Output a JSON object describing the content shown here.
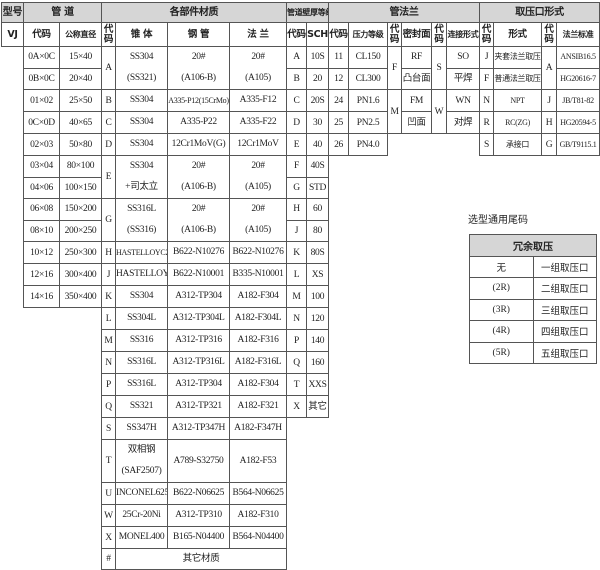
{
  "headers": {
    "model": "型号",
    "pipe": "管 道",
    "materials": "各部件材质",
    "wall": "管道壁厚等级",
    "flange": "管法兰",
    "tap": "取压口形式"
  },
  "subheaders": [
    "VJ",
    "代码",
    "公称直径",
    "代码",
    "锥 体",
    "钢 管",
    "法 兰",
    "代码",
    "SCH",
    "代码",
    "压力等级",
    "代码",
    "密封面",
    "代码",
    "连接形式",
    "代码",
    "形式",
    "代码",
    "法兰标准"
  ],
  "pipe_rows": [
    {
      "code": "0A×0C",
      "size": "15×40"
    },
    {
      "code": "0B×0C",
      "size": "20×40"
    },
    {
      "code": "01×02",
      "size": "25×50"
    },
    {
      "code": "0C×0D",
      "size": "40×65"
    },
    {
      "code": "02×03",
      "size": "50×80"
    },
    {
      "code": "03×04",
      "size": "80×100"
    },
    {
      "code": "04×06",
      "size": "100×150"
    },
    {
      "code": "06×08",
      "size": "150×200"
    },
    {
      "code": "08×10",
      "size": "200×250"
    },
    {
      "code": "10×12",
      "size": "250×300"
    },
    {
      "code": "12×16",
      "size": "300×400"
    },
    {
      "code": "14×16",
      "size": "350×400"
    }
  ],
  "materials": [
    {
      "code": "A",
      "span": 2,
      "cone": [
        "SS304",
        "(SS321)"
      ],
      "pipe": [
        "20#",
        "(A106-B)"
      ],
      "flange": [
        "20#",
        "(A105)"
      ]
    },
    {
      "code": "B",
      "span": 1,
      "cone": [
        "SS304"
      ],
      "pipe": [
        "A335-P12(15CrMo)"
      ],
      "flange": [
        "A335-F12"
      ]
    },
    {
      "code": "C",
      "span": 1,
      "cone": [
        "SS304"
      ],
      "pipe": [
        "A335-P22"
      ],
      "flange": [
        "A335-F22"
      ]
    },
    {
      "code": "D",
      "span": 1,
      "cone": [
        "SS304"
      ],
      "pipe": [
        "12Cr1MoV(G)"
      ],
      "flange": [
        "12Cr1MoV"
      ]
    },
    {
      "code": "E",
      "span": 2,
      "cone": [
        "SS304",
        "+司太立"
      ],
      "pipe": [
        "20#",
        "(A106-B)"
      ],
      "flange": [
        "20#",
        "(A105)"
      ]
    },
    {
      "code": "G",
      "span": 2,
      "cone": [
        "SS316L",
        "(SS316)"
      ],
      "pipe": [
        "20#",
        "(A106-B)"
      ],
      "flange": [
        "20#",
        "(A105)"
      ]
    },
    {
      "code": "H",
      "span": 1,
      "cone": [
        "HASTELLOYC276"
      ],
      "pipe": [
        "B622-N10276"
      ],
      "flange": [
        "B622-N10276"
      ]
    },
    {
      "code": "J",
      "span": 1,
      "cone": [
        "HASTELLOY"
      ],
      "pipe": [
        "B622-N10001"
      ],
      "flange": [
        "B335-N10001"
      ]
    },
    {
      "code": "K",
      "span": 1,
      "cone": [
        "SS304"
      ],
      "pipe": [
        "A312-TP304"
      ],
      "flange": [
        "A182-F304"
      ]
    },
    {
      "code": "L",
      "span": 1,
      "cone": [
        "SS304L"
      ],
      "pipe": [
        "A312-TP304L"
      ],
      "flange": [
        "A182-F304L"
      ]
    },
    {
      "code": "M",
      "span": 1,
      "cone": [
        "SS316"
      ],
      "pipe": [
        "A312-TP316"
      ],
      "flange": [
        "A182-F316"
      ]
    },
    {
      "code": "N",
      "span": 1,
      "cone": [
        "SS316L"
      ],
      "pipe": [
        "A312-TP316L"
      ],
      "flange": [
        "A182-F316L"
      ]
    },
    {
      "code": "P",
      "span": 1,
      "cone": [
        "SS316L"
      ],
      "pipe": [
        "A312-TP304"
      ],
      "flange": [
        "A182-F304"
      ]
    },
    {
      "code": "Q",
      "span": 1,
      "cone": [
        "SS321"
      ],
      "pipe": [
        "A312-TP321"
      ],
      "flange": [
        "A182-F321"
      ]
    },
    {
      "code": "S",
      "span": 1,
      "cone": [
        "SS347H"
      ],
      "pipe": [
        "A312-TP347H"
      ],
      "flange": [
        "A182-F347H"
      ]
    },
    {
      "code": "T",
      "span": 2,
      "cone": [
        "双相钢",
        "(SAF2507)"
      ],
      "pipe": [
        "A789-S32750"
      ],
      "flange": [
        "A182-F53"
      ]
    },
    {
      "code": "U",
      "span": 1,
      "cone": [
        "INCONEL625"
      ],
      "pipe": [
        "B622-N06625"
      ],
      "flange": [
        "B564-N06625"
      ]
    },
    {
      "code": "W",
      "span": 1,
      "cone": [
        "25Cr-20Ni"
      ],
      "pipe": [
        "A312-TP310"
      ],
      "flange": [
        "A182-F310"
      ]
    },
    {
      "code": "X",
      "span": 1,
      "cone": [
        "MONEL400"
      ],
      "pipe": [
        "B165-N04400"
      ],
      "flange": [
        "B564-N04400"
      ]
    },
    {
      "code": "#",
      "span": 1,
      "other": "其它材质"
    }
  ],
  "sch_rows": [
    {
      "code": "A",
      "sch": "10S"
    },
    {
      "code": "B",
      "sch": "20"
    },
    {
      "code": "C",
      "sch": "20S"
    },
    {
      "code": "D",
      "sch": "30"
    },
    {
      "code": "E",
      "sch": "40"
    },
    {
      "code": "F",
      "sch": "40S"
    },
    {
      "code": "G",
      "sch": "STD"
    },
    {
      "code": "H",
      "sch": "60"
    },
    {
      "code": "J",
      "sch": "80"
    },
    {
      "code": "K",
      "sch": "80S"
    },
    {
      "code": "L",
      "sch": "XS"
    },
    {
      "code": "M",
      "sch": "100"
    },
    {
      "code": "N",
      "sch": "120"
    },
    {
      "code": "P",
      "sch": "140"
    },
    {
      "code": "Q",
      "sch": "160"
    },
    {
      "code": "T",
      "sch": "XXS"
    },
    {
      "code": "X",
      "sch": "其它"
    }
  ],
  "pressure_rows": [
    {
      "code": "11",
      "rating": "CL150"
    },
    {
      "code": "12",
      "rating": "CL300"
    },
    {
      "code": "24",
      "rating": "PN1.6"
    },
    {
      "code": "25",
      "rating": "PN2.5"
    },
    {
      "code": "26",
      "rating": "PN4.0"
    }
  ],
  "seal_faces": [
    {
      "code": "F",
      "faces": [
        "RF",
        "凸台面"
      ]
    },
    {
      "code": "M",
      "faces": [
        "FM",
        "凹面"
      ]
    }
  ],
  "connections": [
    {
      "code": "S",
      "forms": [
        "SO",
        "平焊"
      ]
    },
    {
      "code": "W",
      "forms": [
        "WN",
        "对焊"
      ]
    }
  ],
  "tap_forms": [
    {
      "code": "J",
      "form": "夹套法兰取压"
    },
    {
      "code": "F",
      "form": "普通法兰取压"
    },
    {
      "code": "N",
      "form": "NPT"
    },
    {
      "code": "R",
      "form": "RC(ZG)"
    },
    {
      "code": "S",
      "form": "承接口"
    }
  ],
  "flange_standards": [
    {
      "code": "A",
      "items": [
        "ANSIB16.5",
        "HG20616-7"
      ]
    },
    {
      "code": "J",
      "items": [
        "JB/T81-82"
      ]
    },
    {
      "code": "H",
      "items": [
        "HG20594-5"
      ]
    },
    {
      "code": "G",
      "items": [
        "GB/T9115.1"
      ]
    }
  ],
  "suffix": {
    "label": "选型通用尾码",
    "title": "冗余取压",
    "rows": [
      {
        "code": "无",
        "desc": "一组取压口"
      },
      {
        "code": "(2R)",
        "desc": "二组取压口"
      },
      {
        "code": "(3R)",
        "desc": "三组取压口"
      },
      {
        "code": "(4R)",
        "desc": "四组取压口"
      },
      {
        "code": "(5R)",
        "desc": "五组取压口"
      }
    ]
  }
}
